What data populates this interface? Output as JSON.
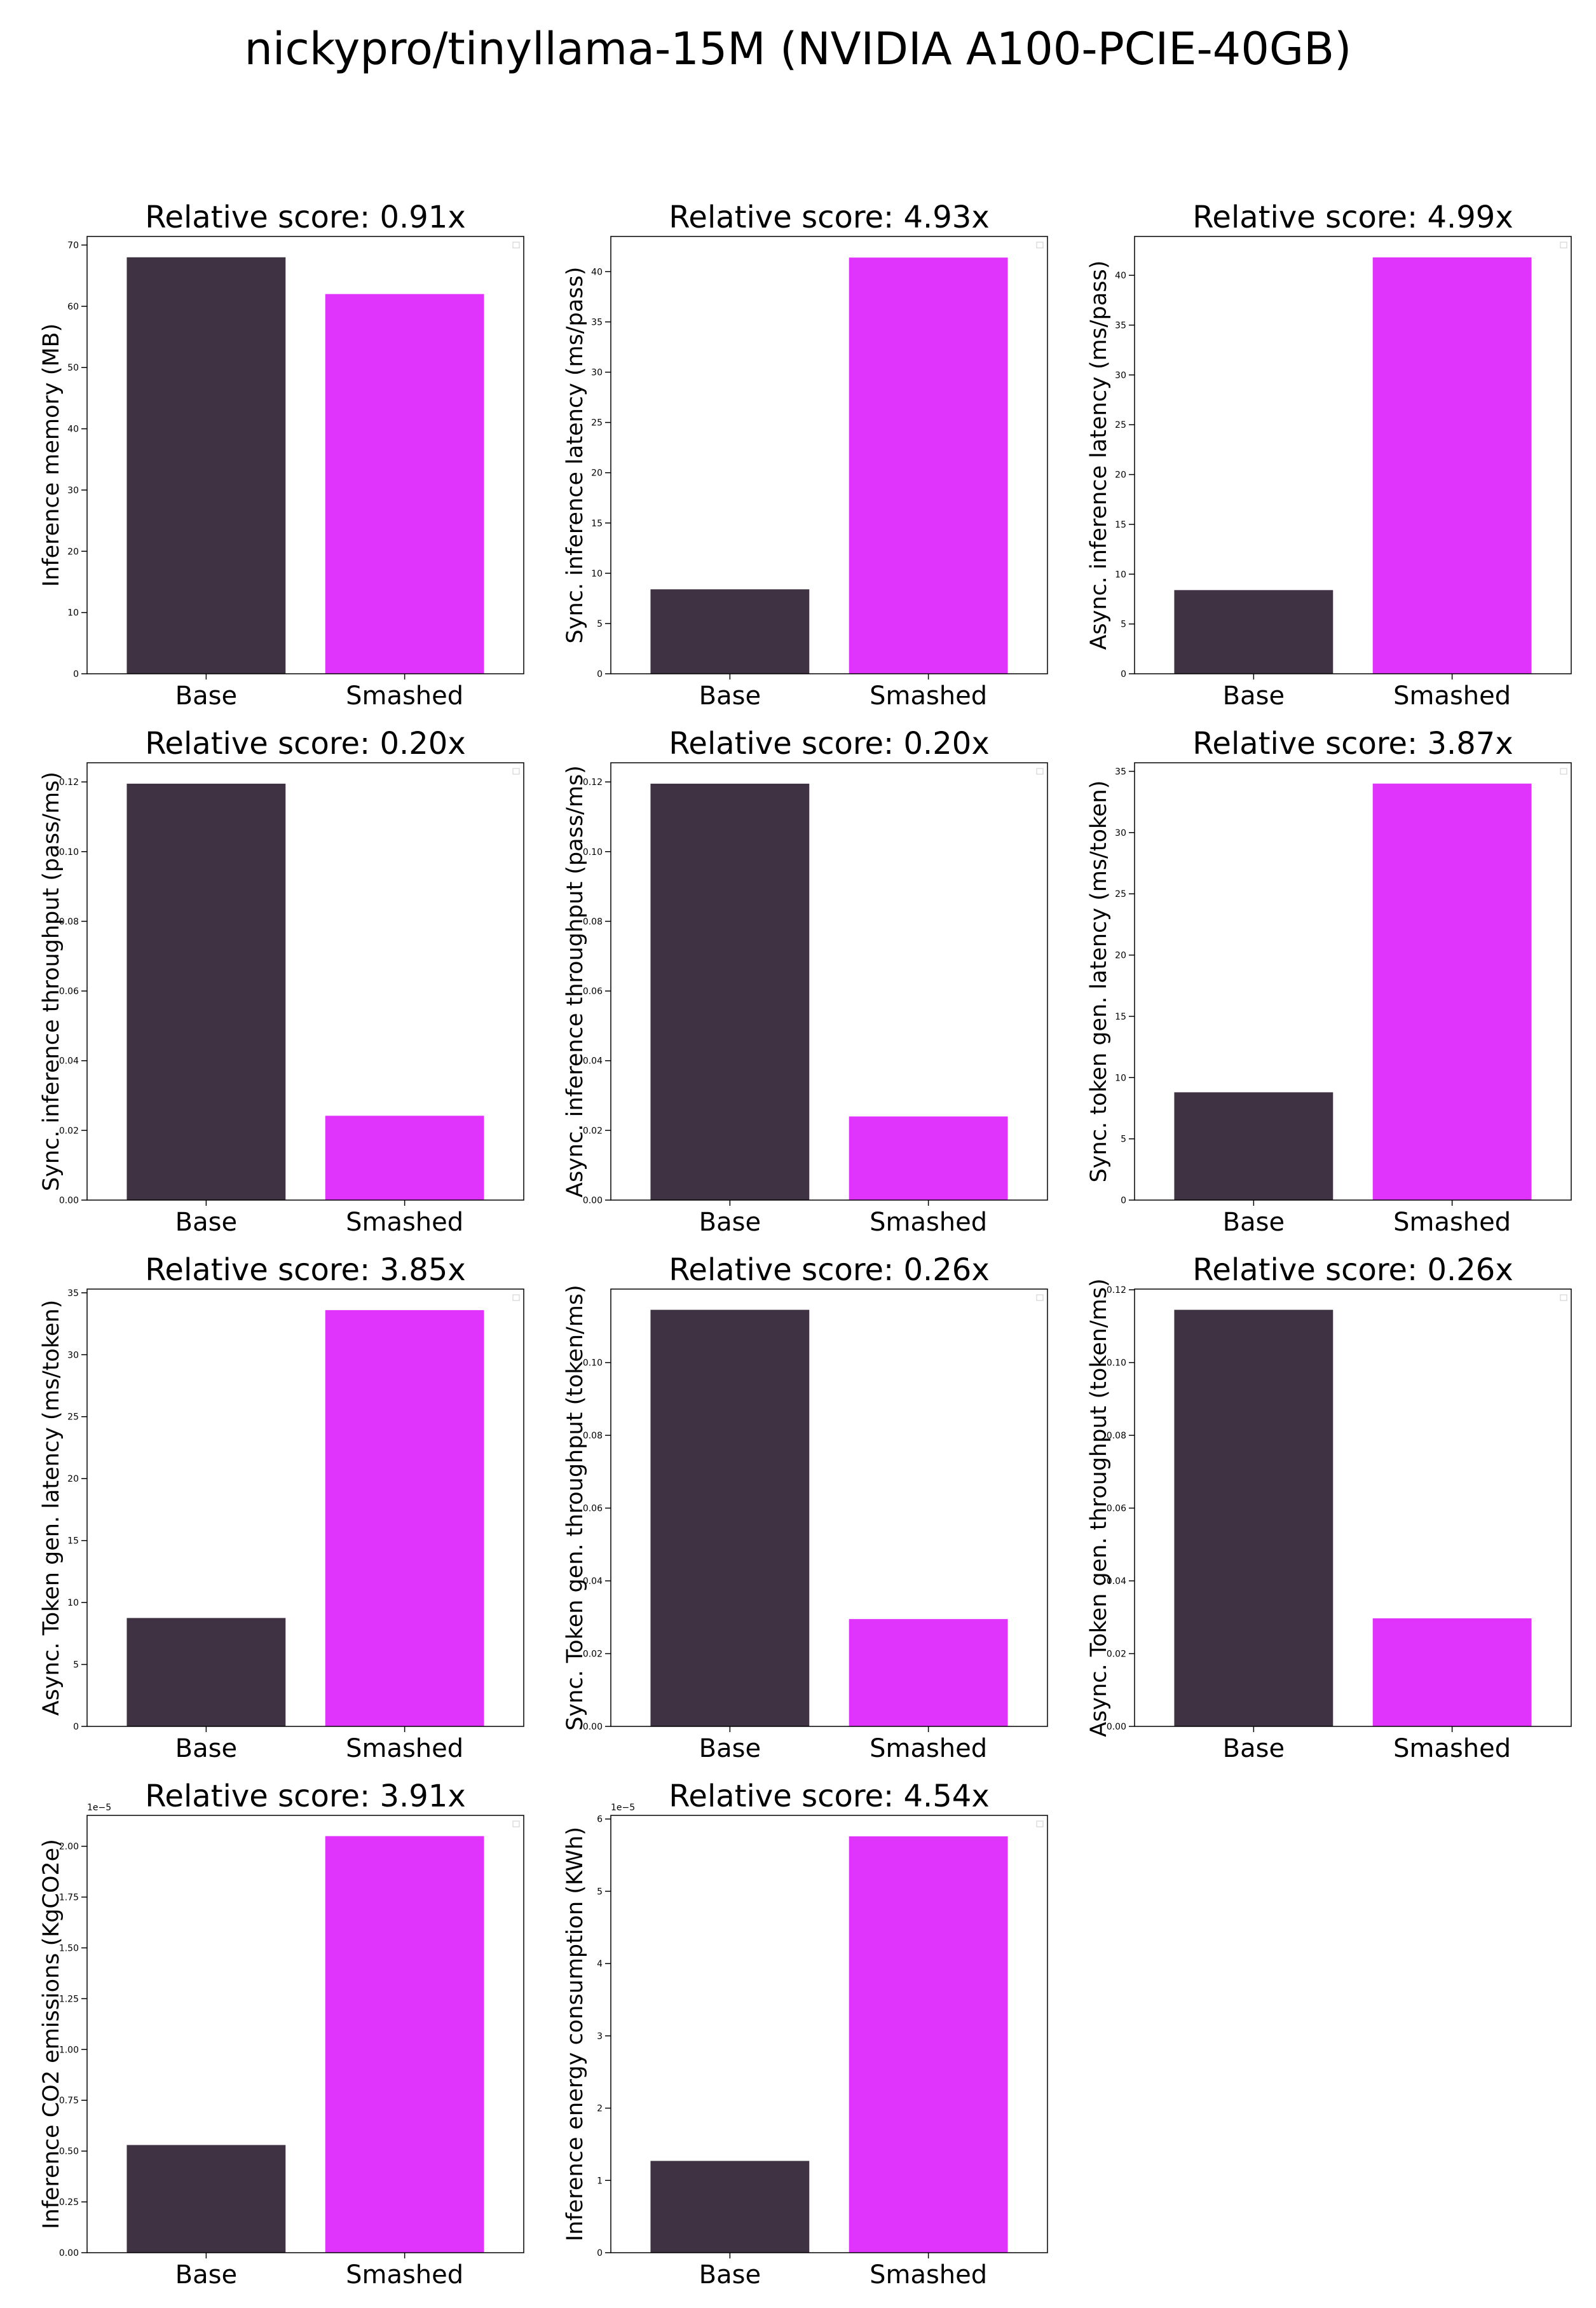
{
  "suptitle": "nickypro/tinyllama-15M (NVIDIA A100-PCIE-40GB)",
  "colors": {
    "base": "#3f3242",
    "smashed": "#e034fc"
  },
  "chart_data": [
    {
      "type": "bar",
      "title": "Relative score: 0.91x",
      "ylabel": "Inference memory (MB)",
      "categories": [
        "Base",
        "Smashed"
      ],
      "values": [
        68.0,
        62.0
      ],
      "ylim": [
        0,
        71.4
      ],
      "yticks": [
        0,
        10,
        20,
        30,
        40,
        50,
        60,
        70
      ],
      "tick_labels": [
        "0",
        "10",
        "20",
        "30",
        "40",
        "50",
        "60",
        "70"
      ],
      "offset_label": ""
    },
    {
      "type": "bar",
      "title": "Relative score: 4.93x",
      "ylabel": "Sync. inference latency (ms/pass)",
      "categories": [
        "Base",
        "Smashed"
      ],
      "values": [
        8.4,
        41.4
      ],
      "ylim": [
        0,
        43.5
      ],
      "yticks": [
        0,
        5,
        10,
        15,
        20,
        25,
        30,
        35,
        40
      ],
      "tick_labels": [
        "0",
        "5",
        "10",
        "15",
        "20",
        "25",
        "30",
        "35",
        "40"
      ],
      "offset_label": ""
    },
    {
      "type": "bar",
      "title": "Relative score: 4.99x",
      "ylabel": "Async. inference latency (ms/pass)",
      "categories": [
        "Base",
        "Smashed"
      ],
      "values": [
        8.4,
        41.8
      ],
      "ylim": [
        0,
        43.9
      ],
      "yticks": [
        0,
        5,
        10,
        15,
        20,
        25,
        30,
        35,
        40
      ],
      "tick_labels": [
        "0",
        "5",
        "10",
        "15",
        "20",
        "25",
        "30",
        "35",
        "40"
      ],
      "offset_label": ""
    },
    {
      "type": "bar",
      "title": "Relative score: 0.20x",
      "ylabel": "Sync. inference throughput (pass/ms)",
      "categories": [
        "Base",
        "Smashed"
      ],
      "values": [
        0.1195,
        0.0242
      ],
      "ylim": [
        0,
        0.1255
      ],
      "yticks": [
        0,
        0.02,
        0.04,
        0.06,
        0.08,
        0.1,
        0.12
      ],
      "tick_labels": [
        "0.00",
        "0.02",
        "0.04",
        "0.06",
        "0.08",
        "0.10",
        "0.12"
      ],
      "offset_label": ""
    },
    {
      "type": "bar",
      "title": "Relative score: 0.20x",
      "ylabel": "Async. inference throughput (pass/ms)",
      "categories": [
        "Base",
        "Smashed"
      ],
      "values": [
        0.1195,
        0.024
      ],
      "ylim": [
        0,
        0.1255
      ],
      "yticks": [
        0,
        0.02,
        0.04,
        0.06,
        0.08,
        0.1,
        0.12
      ],
      "tick_labels": [
        "0.00",
        "0.02",
        "0.04",
        "0.06",
        "0.08",
        "0.10",
        "0.12"
      ],
      "offset_label": ""
    },
    {
      "type": "bar",
      "title": "Relative score: 3.87x",
      "ylabel": "Sync. token gen. latency (ms/token)",
      "categories": [
        "Base",
        "Smashed"
      ],
      "values": [
        8.8,
        34.0
      ],
      "ylim": [
        0,
        35.7
      ],
      "yticks": [
        0,
        5,
        10,
        15,
        20,
        25,
        30,
        35
      ],
      "tick_labels": [
        "0",
        "5",
        "10",
        "15",
        "20",
        "25",
        "30",
        "35"
      ],
      "offset_label": ""
    },
    {
      "type": "bar",
      "title": "Relative score: 3.85x",
      "ylabel": "Async. Token gen. latency (ms/token)",
      "categories": [
        "Base",
        "Smashed"
      ],
      "values": [
        8.75,
        33.6
      ],
      "ylim": [
        0,
        35.3
      ],
      "yticks": [
        0,
        5,
        10,
        15,
        20,
        25,
        30,
        35
      ],
      "tick_labels": [
        "0",
        "5",
        "10",
        "15",
        "20",
        "25",
        "30",
        "35"
      ],
      "offset_label": ""
    },
    {
      "type": "bar",
      "title": "Relative score: 0.26x",
      "ylabel": "Sync. Token gen. throughput (token/ms)",
      "categories": [
        "Base",
        "Smashed"
      ],
      "values": [
        0.1145,
        0.0295
      ],
      "ylim": [
        0,
        0.1202
      ],
      "yticks": [
        0,
        0.02,
        0.04,
        0.06,
        0.08,
        0.1
      ],
      "tick_labels": [
        "0.00",
        "0.02",
        "0.04",
        "0.06",
        "0.08",
        "0.10"
      ],
      "offset_label": ""
    },
    {
      "type": "bar",
      "title": "Relative score: 0.26x",
      "ylabel": "Async. Token gen. throughput (token/ms)",
      "categories": [
        "Base",
        "Smashed"
      ],
      "values": [
        0.1145,
        0.0297
      ],
      "ylim": [
        0,
        0.1202
      ],
      "yticks": [
        0,
        0.02,
        0.04,
        0.06,
        0.08,
        0.1,
        0.12
      ],
      "tick_labels": [
        "0.00",
        "0.02",
        "0.04",
        "0.06",
        "0.08",
        "0.10",
        "0.12"
      ],
      "offset_label": ""
    },
    {
      "type": "bar",
      "title": "Relative score: 3.91x",
      "ylabel": "Inference CO2 emissions (KgCO2e)",
      "categories": [
        "Base",
        "Smashed"
      ],
      "values": [
        0.53,
        2.05
      ],
      "ylim": [
        0,
        2.152
      ],
      "yticks": [
        0,
        0.25,
        0.5,
        0.75,
        1.0,
        1.25,
        1.5,
        1.75,
        2.0
      ],
      "tick_labels": [
        "0.00",
        "0.25",
        "0.50",
        "0.75",
        "1.00",
        "1.25",
        "1.50",
        "1.75",
        "2.00"
      ],
      "offset_label": "1e−5"
    },
    {
      "type": "bar",
      "title": "Relative score: 4.54x",
      "ylabel": "Inference energy consumption (KWh)",
      "categories": [
        "Base",
        "Smashed"
      ],
      "values": [
        1.27,
        5.76
      ],
      "ylim": [
        0,
        6.05
      ],
      "yticks": [
        0,
        1,
        2,
        3,
        4,
        5,
        6
      ],
      "tick_labels": [
        "0",
        "1",
        "2",
        "3",
        "4",
        "5",
        "6"
      ],
      "offset_label": "1e−5"
    }
  ]
}
